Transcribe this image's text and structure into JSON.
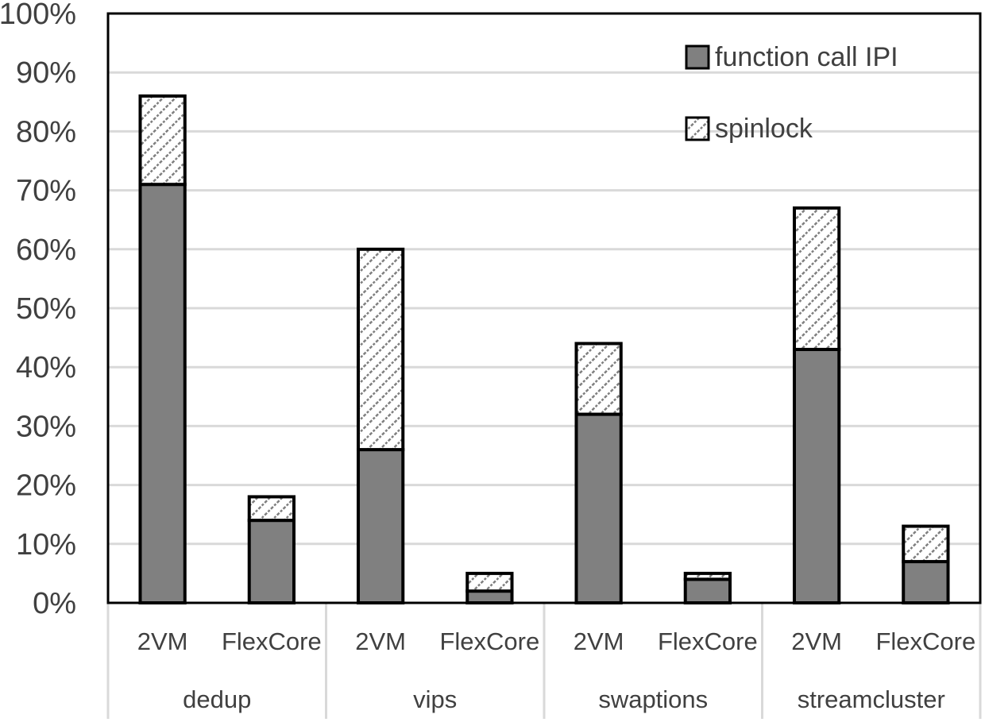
{
  "chart_data": {
    "type": "bar",
    "stacked": true,
    "groups": [
      "dedup",
      "vips",
      "swaptions",
      "streamcluster"
    ],
    "subcategories": [
      "2VM",
      "FlexCore"
    ],
    "categories": [
      "dedup 2VM",
      "dedup FlexCore",
      "vips 2VM",
      "vips FlexCore",
      "swaptions 2VM",
      "swaptions FlexCore",
      "streamcluster 2VM",
      "streamcluster FlexCore"
    ],
    "series": [
      {
        "name": "function call IPI",
        "values": [
          71,
          14,
          26,
          2,
          32,
          4,
          43,
          7
        ],
        "color": "#808080",
        "pattern": "solid"
      },
      {
        "name": "spinlock",
        "values": [
          15,
          4,
          34,
          3,
          12,
          1,
          24,
          6
        ],
        "color": "#ffffff",
        "pattern": "diagonal-hatch"
      }
    ],
    "y_ticks": [
      "0%",
      "10%",
      "20%",
      "30%",
      "40%",
      "50%",
      "60%",
      "70%",
      "80%",
      "90%",
      "100%"
    ],
    "ylim": [
      0,
      100
    ],
    "y_unit": "%",
    "grid": true,
    "legend_position": "top-right",
    "title": "",
    "xlabel": "",
    "ylabel": ""
  }
}
